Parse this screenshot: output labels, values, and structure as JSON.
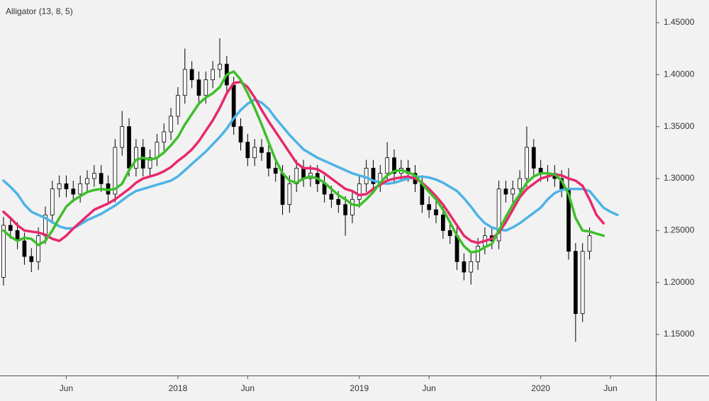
{
  "chart_data": {
    "type": "candlestick",
    "title": "Alligator (13, 8, 5)",
    "categories": [
      null,
      null,
      null,
      null,
      null,
      null,
      null,
      null,
      null,
      "Jun",
      null,
      null,
      null,
      null,
      null,
      null,
      null,
      null,
      null,
      null,
      null,
      null,
      null,
      null,
      null,
      "2018",
      null,
      null,
      null,
      null,
      null,
      null,
      null,
      null,
      null,
      "Jun",
      null,
      null,
      null,
      null,
      null,
      null,
      null,
      null,
      null,
      null,
      null,
      null,
      null,
      null,
      null,
      "2019",
      null,
      null,
      null,
      null,
      null,
      null,
      null,
      null,
      null,
      "Jun",
      null,
      null,
      null,
      null,
      null,
      null,
      null,
      null,
      null,
      null,
      null,
      null,
      null,
      null,
      null,
      "2020",
      null,
      null,
      null,
      null,
      null,
      null,
      null,
      null,
      null,
      "Jun",
      null,
      null,
      null,
      null,
      null,
      null
    ],
    "open": [
      1.205,
      1.255,
      1.25,
      1.24,
      1.225,
      1.22,
      1.245,
      1.265,
      1.29,
      1.295,
      1.29,
      1.285,
      1.295,
      1.3,
      1.305,
      1.295,
      1.285,
      1.33,
      1.35,
      1.31,
      1.33,
      1.31,
      1.32,
      1.335,
      1.345,
      1.36,
      1.38,
      1.405,
      1.395,
      1.38,
      1.395,
      1.405,
      1.41,
      1.39,
      1.35,
      1.335,
      1.32,
      1.33,
      1.325,
      1.31,
      1.305,
      1.275,
      1.295,
      1.31,
      1.3,
      1.305,
      1.295,
      1.285,
      1.28,
      1.275,
      1.265,
      1.28,
      1.295,
      1.31,
      1.295,
      1.305,
      1.32,
      1.305,
      1.31,
      1.305,
      1.295,
      1.275,
      1.27,
      1.265,
      1.25,
      1.245,
      1.22,
      1.21,
      1.22,
      1.235,
      1.245,
      1.24,
      1.29,
      1.285,
      1.29,
      1.3,
      1.33,
      1.31,
      1.305,
      1.305,
      1.3,
      1.29,
      1.23,
      1.17,
      1.23,
      null,
      null,
      null,
      null,
      null,
      null,
      null,
      null,
      null
    ],
    "high": [
      1.263,
      1.263,
      1.258,
      1.248,
      1.233,
      1.253,
      1.273,
      1.298,
      1.303,
      1.303,
      1.298,
      1.303,
      1.308,
      1.313,
      1.313,
      1.303,
      1.338,
      1.365,
      1.358,
      1.338,
      1.338,
      1.328,
      1.343,
      1.353,
      1.368,
      1.388,
      1.425,
      1.413,
      1.403,
      1.403,
      1.413,
      1.435,
      1.418,
      1.398,
      1.358,
      1.343,
      1.338,
      1.338,
      1.333,
      1.318,
      1.313,
      1.303,
      1.318,
      1.318,
      1.313,
      1.313,
      1.303,
      1.293,
      1.288,
      1.283,
      1.288,
      1.303,
      1.318,
      1.318,
      1.313,
      1.335,
      1.328,
      1.318,
      1.318,
      1.313,
      1.303,
      1.283,
      1.278,
      1.273,
      1.258,
      1.253,
      1.228,
      1.228,
      1.243,
      1.253,
      1.253,
      1.298,
      1.298,
      1.298,
      1.308,
      1.35,
      1.338,
      1.318,
      1.313,
      1.313,
      1.308,
      1.31,
      1.238,
      1.238,
      1.253,
      null,
      null,
      null,
      null,
      null,
      null,
      null,
      null,
      null
    ],
    "low": [
      1.197,
      1.242,
      1.232,
      1.217,
      1.21,
      1.212,
      1.237,
      1.257,
      1.282,
      1.282,
      1.277,
      1.277,
      1.287,
      1.292,
      1.287,
      1.277,
      1.277,
      1.322,
      1.302,
      1.302,
      1.302,
      1.302,
      1.312,
      1.327,
      1.337,
      1.352,
      1.372,
      1.387,
      1.372,
      1.372,
      1.387,
      1.397,
      1.382,
      1.342,
      1.327,
      1.312,
      1.312,
      1.317,
      1.302,
      1.297,
      1.265,
      1.267,
      1.287,
      1.292,
      1.292,
      1.287,
      1.277,
      1.272,
      1.267,
      1.245,
      1.257,
      1.272,
      1.287,
      1.287,
      1.287,
      1.297,
      1.297,
      1.297,
      1.297,
      1.287,
      1.267,
      1.262,
      1.257,
      1.242,
      1.237,
      1.212,
      1.202,
      1.198,
      1.212,
      1.227,
      1.232,
      1.232,
      1.277,
      1.277,
      1.282,
      1.292,
      1.302,
      1.297,
      1.297,
      1.292,
      1.282,
      1.222,
      1.143,
      1.162,
      1.222,
      null,
      null,
      null,
      null,
      null,
      null,
      null,
      null,
      null
    ],
    "close": [
      1.255,
      1.25,
      1.24,
      1.225,
      1.22,
      1.245,
      1.265,
      1.29,
      1.295,
      1.29,
      1.285,
      1.295,
      1.3,
      1.305,
      1.295,
      1.285,
      1.33,
      1.35,
      1.31,
      1.33,
      1.31,
      1.32,
      1.335,
      1.345,
      1.36,
      1.38,
      1.405,
      1.395,
      1.38,
      1.395,
      1.405,
      1.41,
      1.39,
      1.35,
      1.335,
      1.32,
      1.33,
      1.325,
      1.31,
      1.305,
      1.275,
      1.295,
      1.31,
      1.3,
      1.305,
      1.295,
      1.285,
      1.28,
      1.275,
      1.265,
      1.28,
      1.295,
      1.31,
      1.295,
      1.305,
      1.32,
      1.305,
      1.31,
      1.305,
      1.295,
      1.275,
      1.27,
      1.265,
      1.25,
      1.245,
      1.22,
      1.21,
      1.22,
      1.235,
      1.245,
      1.24,
      1.29,
      1.285,
      1.29,
      1.3,
      1.33,
      1.31,
      1.305,
      1.305,
      1.3,
      1.29,
      1.23,
      1.17,
      1.23,
      1.245,
      null,
      null,
      null,
      null,
      null,
      null,
      null,
      null,
      null
    ],
    "up_color": "#ffffff",
    "down_color": "#000000",
    "wick_color": "#000000",
    "series": [
      {
        "color": "#4db3e6",
        "values": [
          1.298,
          1.292,
          1.285,
          1.275,
          1.268,
          1.265,
          1.262,
          1.258,
          1.254,
          1.252,
          1.252,
          1.256,
          1.26,
          1.263,
          1.266,
          1.27,
          1.274,
          1.279,
          1.284,
          1.288,
          1.29,
          1.292,
          1.294,
          1.296,
          1.298,
          1.302,
          1.308,
          1.314,
          1.32,
          1.326,
          1.333,
          1.34,
          1.348,
          1.358,
          1.366,
          1.372,
          1.376,
          1.373,
          1.367,
          1.358,
          1.35,
          1.342,
          1.335,
          1.328,
          1.324,
          1.32,
          1.317,
          1.314,
          1.311,
          1.308,
          1.305,
          1.303,
          1.301,
          1.298,
          1.296,
          1.295,
          1.296,
          1.298,
          1.3,
          1.301,
          1.302,
          1.301,
          1.299,
          1.296,
          1.292,
          1.288,
          1.281,
          1.273,
          1.264,
          1.257,
          1.253,
          1.251,
          1.25,
          1.253,
          1.257,
          1.262,
          1.267,
          1.272,
          1.28,
          1.286,
          1.289,
          1.29,
          1.29,
          1.29,
          1.288,
          1.28,
          1.272,
          1.268,
          1.265,
          null,
          null,
          null,
          null,
          null
        ]
      },
      {
        "color": "#e8286e",
        "values": [
          1.268,
          1.262,
          1.255,
          1.25,
          1.249,
          1.248,
          1.246,
          1.242,
          1.24,
          1.245,
          1.252,
          1.258,
          1.264,
          1.27,
          1.273,
          1.276,
          1.28,
          1.285,
          1.29,
          1.296,
          1.3,
          1.302,
          1.304,
          1.307,
          1.311,
          1.317,
          1.322,
          1.328,
          1.336,
          1.346,
          1.356,
          1.368,
          1.382,
          1.392,
          1.393,
          1.388,
          1.378,
          1.366,
          1.355,
          1.345,
          1.335,
          1.325,
          1.315,
          1.31,
          1.31,
          1.309,
          1.305,
          1.3,
          1.295,
          1.29,
          1.288,
          1.284,
          1.285,
          1.29,
          1.294,
          1.298,
          1.3,
          1.301,
          1.302,
          1.3,
          1.296,
          1.29,
          1.283,
          1.275,
          1.265,
          1.255,
          1.245,
          1.24,
          1.238,
          1.24,
          1.242,
          1.248,
          1.258,
          1.27,
          1.282,
          1.29,
          1.295,
          1.3,
          1.302,
          1.304,
          1.303,
          1.3,
          1.298,
          1.293,
          1.28,
          1.265,
          1.257,
          null,
          null,
          null,
          null,
          null,
          null,
          null
        ]
      },
      {
        "color": "#3dbf2a",
        "values": [
          1.25,
          1.244,
          1.24,
          1.243,
          1.242,
          1.236,
          1.24,
          1.25,
          1.262,
          1.273,
          1.279,
          1.283,
          1.287,
          1.289,
          1.29,
          1.289,
          1.29,
          1.295,
          1.308,
          1.318,
          1.32,
          1.318,
          1.32,
          1.325,
          1.332,
          1.34,
          1.352,
          1.362,
          1.372,
          1.378,
          1.382,
          1.388,
          1.4,
          1.403,
          1.395,
          1.382,
          1.368,
          1.352,
          1.335,
          1.318,
          1.305,
          1.298,
          1.296,
          1.3,
          1.302,
          1.3,
          1.296,
          1.29,
          1.284,
          1.28,
          1.275,
          1.274,
          1.28,
          1.287,
          1.296,
          1.303,
          1.307,
          1.308,
          1.306,
          1.303,
          1.295,
          1.287,
          1.28,
          1.27,
          1.258,
          1.245,
          1.235,
          1.229,
          1.23,
          1.234,
          1.237,
          1.25,
          1.263,
          1.275,
          1.285,
          1.296,
          1.302,
          1.305,
          1.305,
          1.304,
          1.298,
          1.285,
          1.262,
          1.25,
          1.249,
          1.247,
          1.245,
          null,
          null,
          null,
          null,
          null,
          null,
          null
        ]
      }
    ],
    "ylim": [
      1.1105,
      1.4718
    ],
    "yticks": [
      {
        "value": 1.15,
        "label": "1.15000"
      },
      {
        "value": 1.2,
        "label": "1.20000"
      },
      {
        "value": 1.25,
        "label": "1.25000"
      },
      {
        "value": 1.3,
        "label": "1.30000"
      },
      {
        "value": 1.35,
        "label": "1.35000"
      },
      {
        "value": 1.4,
        "label": "1.40000"
      },
      {
        "value": 1.45,
        "label": "1.45000"
      }
    ]
  }
}
